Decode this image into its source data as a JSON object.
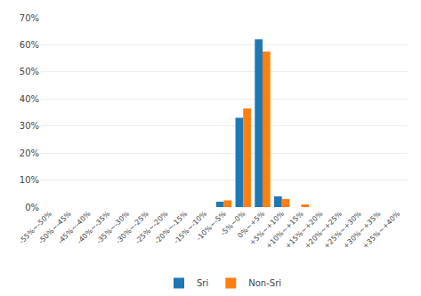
{
  "chart_data": {
    "type": "bar",
    "categories": [
      "-55%~-50%",
      "-50%~-45%",
      "-45%~-40%",
      "-40%~-35%",
      "-35%~-30%",
      "-30%~-25%",
      "-25%~-20%",
      "-20%~-15%",
      "-15%~-10%",
      "-10%~-5%",
      "-5%~0%",
      "0%~+5%",
      "+5%~+10%",
      "+10%~+15%",
      "+15%~+20%",
      "+20%~+25%",
      "+25%~+30%",
      "+30%~+35%",
      "+35%~+40%"
    ],
    "series": [
      {
        "name": "Sri",
        "values": [
          0,
          0,
          0,
          0,
          0,
          0,
          0,
          0,
          0,
          0.02,
          0.33,
          0.62,
          0.04,
          0.0,
          0,
          0,
          0,
          0,
          0
        ]
      },
      {
        "name": "Non-Sri",
        "values": [
          0,
          0,
          0,
          0,
          0,
          0,
          0,
          0,
          0,
          0.025,
          0.365,
          0.575,
          0.03,
          0.01,
          0,
          0,
          0,
          0,
          0
        ]
      }
    ],
    "ylim": [
      0,
      0.7
    ],
    "yticks": [
      {
        "value": 0,
        "label": "0%"
      },
      {
        "value": 0.1,
        "label": "10%"
      },
      {
        "value": 0.2,
        "label": "20%"
      },
      {
        "value": 0.3,
        "label": "30%"
      },
      {
        "value": 0.4,
        "label": "40%"
      },
      {
        "value": 0.5,
        "label": "50%"
      },
      {
        "value": 0.6,
        "label": "60%"
      },
      {
        "value": 0.7,
        "label": "70%"
      }
    ],
    "grid": true,
    "legend": "bottom"
  }
}
